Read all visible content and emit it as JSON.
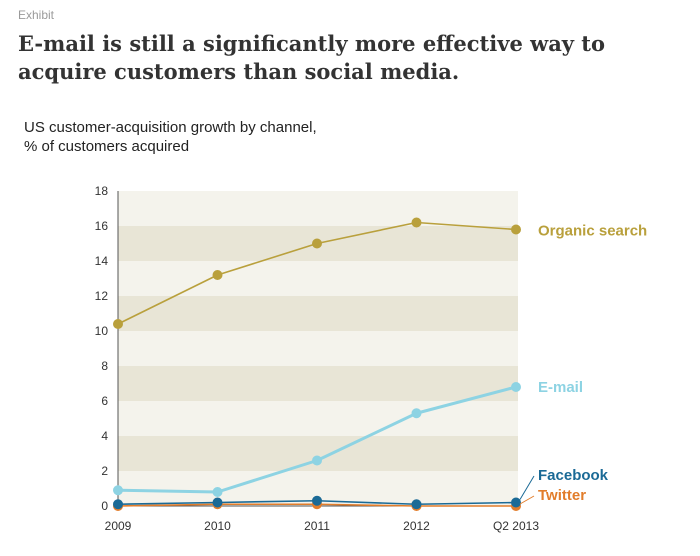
{
  "header": {
    "exhibit_label": "Exhibit",
    "title": "E-mail is still a significantly more effective way to acquire customers than social media."
  },
  "chart_data": {
    "type": "line",
    "subtitle_line1": "US customer-acquisition growth by channel,",
    "subtitle_line2": "% of customers acquired",
    "categories": [
      "2009",
      "2010",
      "2011",
      "2012",
      "Q2 2013"
    ],
    "ylim": [
      0,
      18
    ],
    "yticks": [
      0,
      2,
      4,
      6,
      8,
      10,
      12,
      14,
      16,
      18
    ],
    "grid": "alternating horizontal bands",
    "series": [
      {
        "name": "Organic search",
        "color": "#b9a03c",
        "values": [
          10.4,
          13.2,
          15.0,
          16.2,
          15.8
        ]
      },
      {
        "name": "E-mail",
        "color": "#8dd3e3",
        "values": [
          0.9,
          0.8,
          2.6,
          5.3,
          6.8
        ]
      },
      {
        "name": "Facebook",
        "color": "#1b6a96",
        "values": [
          0.1,
          0.2,
          0.3,
          0.1,
          0.2
        ]
      },
      {
        "name": "Twitter",
        "color": "#e27d2b",
        "values": [
          0.0,
          0.1,
          0.1,
          0.0,
          0.0
        ]
      }
    ],
    "band_colors": [
      "#f4f3ec",
      "#e8e5d6"
    ],
    "axis_color": "#555555"
  }
}
